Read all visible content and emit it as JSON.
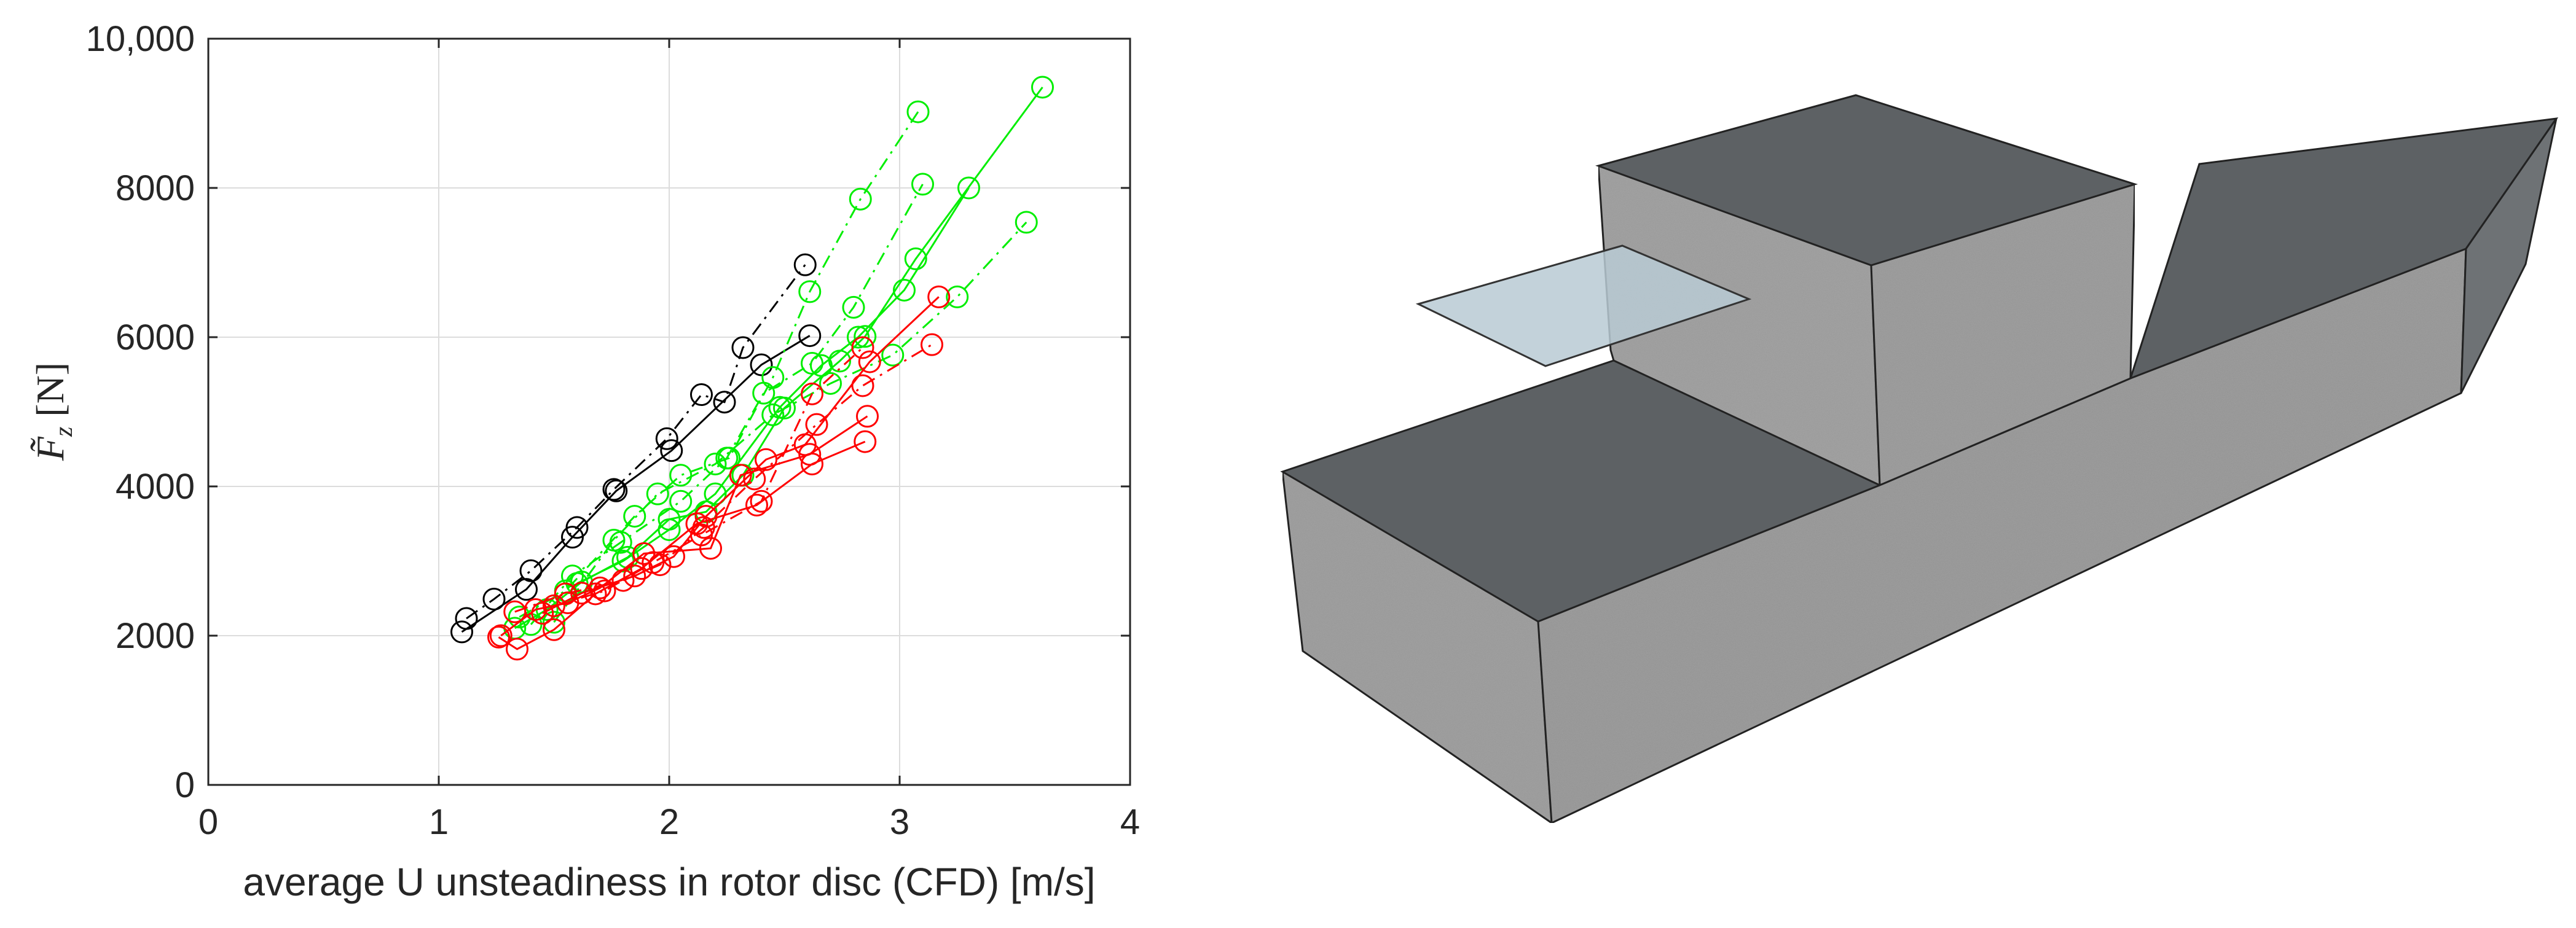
{
  "chart_data": [
    {
      "type": "line",
      "title": "",
      "xlabel": "average U unsteadiness in rotor disc (CFD) [m/s]",
      "ylabel": "F̃z [N]",
      "ylabel_main": "F̃",
      "ylabel_sub": "z",
      "ylabel_unit": " [N]",
      "xlim": [
        0,
        4
      ],
      "ylim": [
        0,
        10000
      ],
      "x_ticks": [
        0,
        1,
        2,
        3,
        4
      ],
      "x_tick_labels": [
        "0",
        "1",
        "2",
        "3",
        "4"
      ],
      "y_ticks": [
        0,
        2000,
        4000,
        6000,
        8000,
        10000
      ],
      "y_tick_labels": [
        "0",
        "2000",
        "4000",
        "6000",
        "8000",
        "10,000"
      ],
      "grid": true,
      "legend": "none",
      "marker": "open-circle",
      "series": [
        {
          "color": "#000000",
          "dash": "solid",
          "x": [
            1.1,
            1.38,
            1.58,
            1.77,
            2.01,
            2.4,
            2.61
          ],
          "y": [
            2050,
            2620,
            3320,
            3940,
            4480,
            5630,
            6020
          ]
        },
        {
          "color": "#000000",
          "dash": "dashdot",
          "x": [
            1.12,
            1.24,
            1.4,
            1.6,
            1.76,
            1.99,
            2.14,
            2.24,
            2.32,
            2.59
          ],
          "y": [
            2230,
            2490,
            2870,
            3450,
            3960,
            4640,
            5230,
            5130,
            5860,
            6970
          ]
        },
        {
          "color": "#00ee00",
          "dash": "solid",
          "x": [
            1.33,
            1.47,
            1.62,
            1.82,
            2.0,
            2.16,
            2.32,
            2.5,
            2.74,
            2.85,
            3.07,
            3.62
          ],
          "y": [
            2100,
            2350,
            2720,
            3050,
            3560,
            3660,
            4150,
            5050,
            5680,
            6010,
            7050,
            9350
          ]
        },
        {
          "color": "#00ee00",
          "dash": "dashdot",
          "x": [
            1.35,
            1.55,
            1.85,
            2.05,
            2.26,
            2.45,
            2.61,
            2.83,
            3.08
          ],
          "y": [
            2250,
            2600,
            3600,
            4150,
            4380,
            5460,
            6610,
            7850,
            9020
          ]
        },
        {
          "color": "#00ee00",
          "dash": "dashdot",
          "x": [
            1.4,
            1.58,
            1.79,
            2.05,
            2.25,
            2.41,
            2.62,
            2.8,
            3.1
          ],
          "y": [
            2150,
            2800,
            3250,
            3800,
            4380,
            5250,
            5650,
            6400,
            8050
          ]
        },
        {
          "color": "#00ee00",
          "dash": "dashdot",
          "x": [
            1.5,
            1.76,
            1.95,
            2.2,
            2.45,
            2.7,
            2.97,
            3.25,
            3.55
          ],
          "y": [
            2180,
            3280,
            3900,
            4300,
            4960,
            5380,
            5760,
            6540,
            7540
          ]
        },
        {
          "color": "#00ee00",
          "dash": "solid",
          "x": [
            1.6,
            1.8,
            2.0,
            2.2,
            2.48,
            2.66,
            2.82,
            3.02,
            3.3
          ],
          "y": [
            2700,
            3000,
            3420,
            3900,
            5060,
            5620,
            6000,
            6630,
            8000
          ]
        },
        {
          "color": "#ff0000",
          "dash": "solid",
          "x": [
            1.26,
            1.34,
            1.5,
            1.68,
            1.88,
            2.12,
            2.38,
            2.62,
            2.85
          ],
          "y": [
            1980,
            1820,
            2080,
            2560,
            2900,
            3500,
            3750,
            4300,
            4600
          ]
        },
        {
          "color": "#ff0000",
          "dash": "solid",
          "x": [
            1.27,
            1.42,
            1.56,
            1.7,
            1.89,
            2.18,
            2.31,
            2.61,
            2.86
          ],
          "y": [
            2000,
            2350,
            2440,
            2640,
            3100,
            3170,
            4150,
            4430,
            4940
          ]
        },
        {
          "color": "#ff0000",
          "dash": "solid",
          "x": [
            1.45,
            1.62,
            1.85,
            2.02,
            2.16,
            2.42,
            2.59,
            2.87,
            3.17
          ],
          "y": [
            2300,
            2570,
            2800,
            3060,
            3600,
            4360,
            4560,
            5670,
            6540
          ]
        },
        {
          "color": "#ff0000",
          "dash": "dashdot",
          "x": [
            1.33,
            1.55,
            1.8,
            1.96,
            2.15,
            2.37,
            2.64,
            2.84,
            3.14
          ],
          "y": [
            2320,
            2560,
            2740,
            2950,
            3450,
            4100,
            4830,
            5350,
            5900
          ]
        },
        {
          "color": "#ff0000",
          "dash": "dashdot",
          "x": [
            1.5,
            1.72,
            1.93,
            2.14,
            2.4,
            2.62,
            2.84
          ],
          "y": [
            2400,
            2600,
            2980,
            3350,
            3800,
            5240,
            5860
          ]
        }
      ]
    }
  ]
}
